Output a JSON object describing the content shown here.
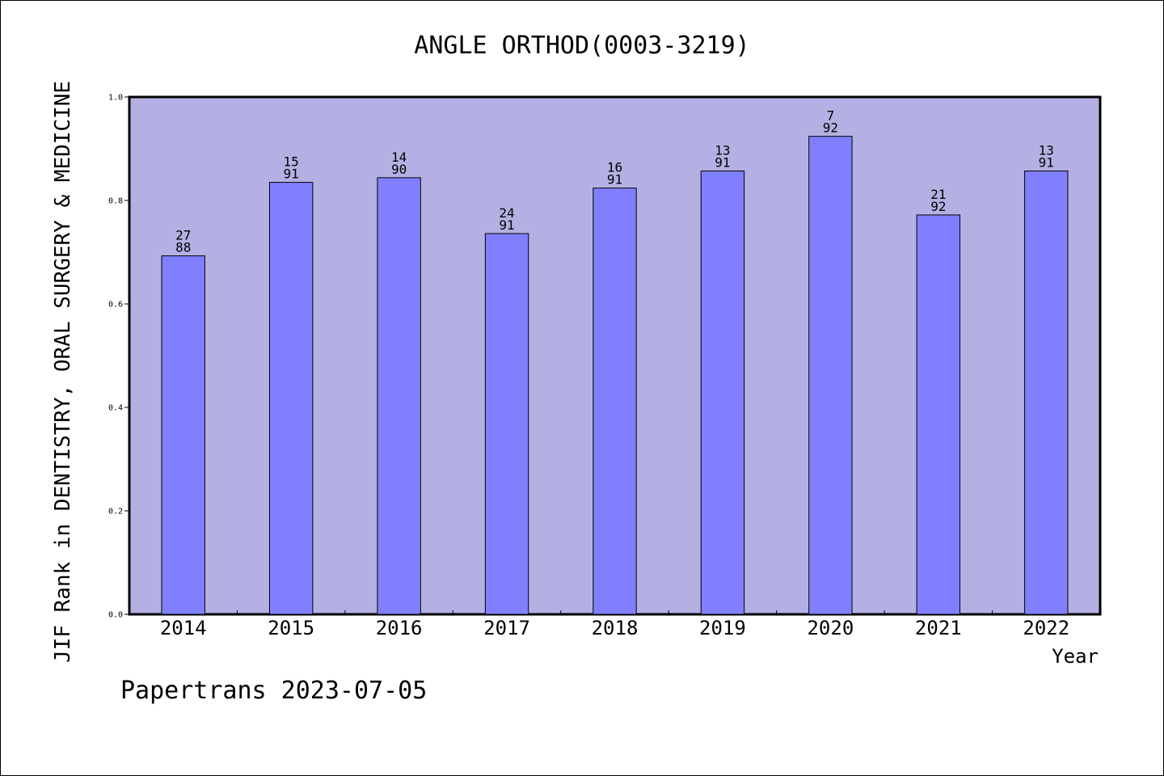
{
  "chart_data": {
    "type": "bar",
    "title": "ANGLE ORTHOD(0003-3219)",
    "xlabel": "Year",
    "ylabel": "JIF Rank in DENTISTRY, ORAL SURGERY & MEDICINE",
    "ylim": [
      0,
      1.0
    ],
    "yticks": [
      "0.0",
      "0.2",
      "0.4",
      "0.6",
      "0.8",
      "1.0"
    ],
    "categories": [
      "2014",
      "2015",
      "2016",
      "2017",
      "2018",
      "2019",
      "2020",
      "2021",
      "2022"
    ],
    "values": [
      0.693,
      0.835,
      0.844,
      0.736,
      0.824,
      0.857,
      0.924,
      0.772,
      0.857
    ],
    "rank": [
      "27",
      "15",
      "14",
      "24",
      "16",
      "13",
      "7",
      "21",
      "13"
    ],
    "total": [
      "88",
      "91",
      "90",
      "91",
      "91",
      "91",
      "92",
      "92",
      "91"
    ],
    "grid": false,
    "colors": {
      "plot_bg": "#b5b0e3",
      "bar": "#8080ff",
      "border": "#000000"
    }
  },
  "footer": "Papertrans 2023-07-05"
}
